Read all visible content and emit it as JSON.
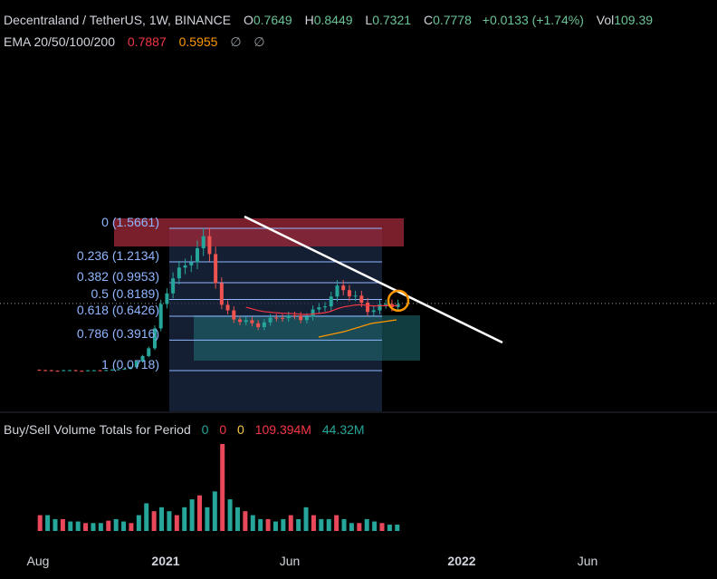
{
  "header": {
    "symbol": "Decentraland / TetherUS, 1W, BINANCE",
    "o_label": "O",
    "o_value": "0.7649",
    "h_label": "H",
    "h_value": "0.8449",
    "l_label": "L",
    "l_value": "0.7321",
    "c_label": "C",
    "c_value": "0.7778",
    "change": "+0.0133 (+1.74%)",
    "vol_label": "Vol",
    "vol_value": "109.39"
  },
  "ema": {
    "label": "EMA 20/50/100/200",
    "v20": "0.7887",
    "v50": "0.5955",
    "v100": "∅",
    "v200": "∅"
  },
  "volume_panel": {
    "title": "Buy/Sell Volume Totals for Period",
    "v1": "0",
    "v2": "0",
    "v3": "0",
    "total": "109.394M",
    "buy": "44.32M"
  },
  "fib_levels": [
    {
      "label": "0 (1.5661)",
      "value": 1.5661
    },
    {
      "label": "0.236 (1.2134)",
      "value": 1.2134
    },
    {
      "label": "0.382 (0.9953)",
      "value": 0.9953
    },
    {
      "label": "0.5 (0.8189)",
      "value": 0.8189
    },
    {
      "label": "0.618 (0.6426)",
      "value": 0.6426
    },
    {
      "label": "0.786 (0.3916)",
      "value": 0.3916
    },
    {
      "label": "1 (0.0718)",
      "value": 0.0718
    }
  ],
  "x_axis": [
    {
      "label": "Aug",
      "bold": false
    },
    {
      "label": "2021",
      "bold": true
    },
    {
      "label": "Jun",
      "bold": false
    },
    {
      "label": "2022",
      "bold": true
    },
    {
      "label": "Jun",
      "bold": false
    }
  ],
  "colors": {
    "up": "#26a69a",
    "down": "#ef5350",
    "volume_down": "#e9485a",
    "fib": "#8fb6ff",
    "trendline": "#ffffff",
    "ema20": "#f23645",
    "ema50": "#ff9800",
    "highlight": "#ff9800"
  },
  "chart_data": {
    "type": "candlestick",
    "timeframe": "1W",
    "last_candle": {
      "open": 0.7649,
      "high": 0.8449,
      "low": 0.7321,
      "close": 0.7778
    },
    "series": [
      {
        "name": "EMA 20",
        "last": 0.7887
      },
      {
        "name": "EMA 50",
        "last": 0.5955
      }
    ],
    "price_path": [
      {
        "x": 0.0,
        "y": 0.08
      },
      {
        "x": 0.03,
        "y": 0.07
      },
      {
        "x": 0.06,
        "y": 0.075
      },
      {
        "x": 0.09,
        "y": 0.07
      },
      {
        "x": 0.12,
        "y": 0.075
      },
      {
        "x": 0.15,
        "y": 0.08
      },
      {
        "x": 0.18,
        "y": 0.1
      },
      {
        "x": 0.2,
        "y": 0.2
      },
      {
        "x": 0.22,
        "y": 0.35
      },
      {
        "x": 0.24,
        "y": 0.8
      },
      {
        "x": 0.26,
        "y": 1.05
      },
      {
        "x": 0.28,
        "y": 1.15
      },
      {
        "x": 0.3,
        "y": 1.3
      },
      {
        "x": 0.32,
        "y": 1.45
      },
      {
        "x": 0.33,
        "y": 1.3
      },
      {
        "x": 0.35,
        "y": 0.75
      },
      {
        "x": 0.38,
        "y": 0.6
      },
      {
        "x": 0.42,
        "y": 0.55
      },
      {
        "x": 0.46,
        "y": 0.65
      },
      {
        "x": 0.5,
        "y": 0.62
      },
      {
        "x": 0.54,
        "y": 0.75
      },
      {
        "x": 0.57,
        "y": 0.95
      },
      {
        "x": 0.6,
        "y": 0.85
      },
      {
        "x": 0.62,
        "y": 0.7
      },
      {
        "x": 0.65,
        "y": 0.75
      },
      {
        "x": 0.68,
        "y": 0.778
      }
    ],
    "volume_path": [
      2,
      2,
      1.5,
      1.5,
      1.2,
      1.2,
      1,
      1,
      1,
      1.3,
      1.5,
      1.2,
      1,
      2,
      3.5,
      2.5,
      3,
      2.5,
      2,
      3,
      4,
      4.5,
      3,
      5,
      11,
      4,
      3,
      2.5,
      2,
      1.5,
      1.5,
      1.2,
      1.5,
      2,
      1.5,
      3,
      2,
      1.5,
      1.5,
      2,
      1.5,
      1,
      1,
      1.5,
      1.2,
      1,
      0.8,
      0.8
    ]
  }
}
